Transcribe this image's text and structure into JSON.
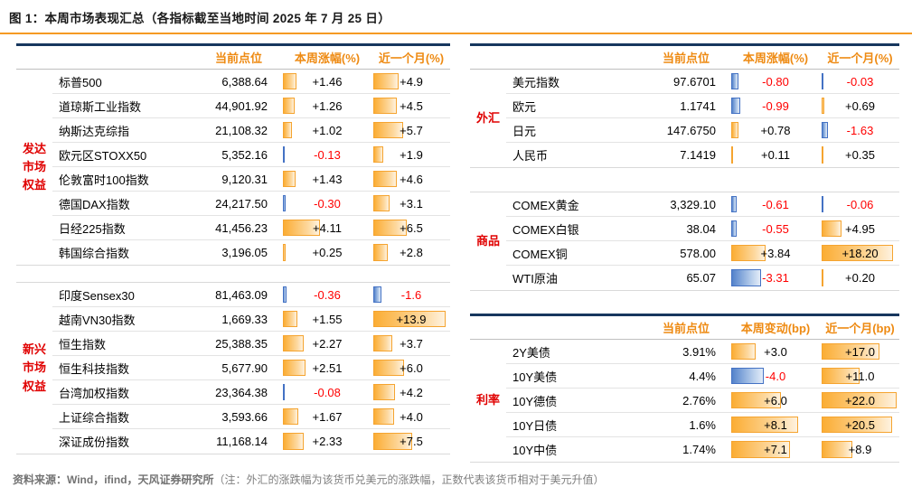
{
  "title": "图 1：本周市场表现汇总（各指标截至当地时间 2025 年 7 月 25 日）",
  "note": {
    "source": "资料来源：Wind，ifind，天风证券研究所",
    "text": "（注：外汇的涨跌幅为该货币兑美元的涨跌幅，正数代表该货币相对于美元升值）"
  },
  "colors": {
    "header_orange": "#EE8A12",
    "accent_rule_orange": "#F59A23",
    "group_label_red": "#E00000",
    "negative_red": "#FF0000",
    "positive_bar": "#FBAD34",
    "negative_bar": "#4472C4",
    "table_top_border_navy": "#17375E"
  },
  "chart_data": {
    "type": "table",
    "tables": [
      {
        "id": "left-table",
        "headers": [
          "当前点位",
          "本周涨幅(%)",
          "近一个月(%)"
        ],
        "bar_scale_hint": [
          10,
          15
        ],
        "groups": [
          {
            "label": "发达市场权益",
            "rows": [
              {
                "name": "标普500",
                "current": "6,388.64",
                "week": "+1.46",
                "month": "+4.9"
              },
              {
                "name": "道琼斯工业指数",
                "current": "44,901.92",
                "week": "+1.26",
                "month": "+4.5"
              },
              {
                "name": "纳斯达克综指",
                "current": "21,108.32",
                "week": "+1.02",
                "month": "+5.7"
              },
              {
                "name": "欧元区STOXX50",
                "current": "5,352.16",
                "week": "-0.13",
                "month": "+1.9"
              },
              {
                "name": "伦敦富时100指数",
                "current": "9,120.31",
                "week": "+1.43",
                "month": "+4.6"
              },
              {
                "name": "德国DAX指数",
                "current": "24,217.50",
                "week": "-0.30",
                "month": "+3.1"
              },
              {
                "name": "日经225指数",
                "current": "41,456.23",
                "week": "+4.11",
                "month": "+6.5"
              },
              {
                "name": "韩国综合指数",
                "current": "3,196.05",
                "week": "+0.25",
                "month": "+2.8"
              }
            ]
          },
          {
            "label": "新兴市场权益",
            "rows": [
              {
                "name": "印度Sensex30",
                "current": "81,463.09",
                "week": "-0.36",
                "month": "-1.6"
              },
              {
                "name": "越南VN30指数",
                "current": "1,669.33",
                "week": "+1.55",
                "month": "+13.9"
              },
              {
                "name": "恒生指数",
                "current": "25,388.35",
                "week": "+2.27",
                "month": "+3.7"
              },
              {
                "name": "恒生科技指数",
                "current": "5,677.90",
                "week": "+2.51",
                "month": "+6.0"
              },
              {
                "name": "台湾加权指数",
                "current": "23,364.38",
                "week": "-0.08",
                "month": "+4.2"
              },
              {
                "name": "上证综合指数",
                "current": "3,593.66",
                "week": "+1.67",
                "month": "+4.0"
              },
              {
                "name": "深证成份指数",
                "current": "11,168.14",
                "week": "+2.33",
                "month": "+7.5"
              }
            ]
          }
        ]
      },
      {
        "id": "right-top-table",
        "headers": [
          "当前点位",
          "本周涨幅(%)",
          "近一个月(%)"
        ],
        "bar_scale_hint": [
          10,
          20
        ],
        "groups": [
          {
            "label": "外汇",
            "rows": [
              {
                "name": "美元指数",
                "current": "97.6701",
                "week": "-0.80",
                "month": "-0.03"
              },
              {
                "name": "欧元",
                "current": "1.1741",
                "week": "-0.99",
                "month": "+0.69"
              },
              {
                "name": "日元",
                "current": "147.6750",
                "week": "+0.78",
                "month": "-1.63"
              },
              {
                "name": "人民币",
                "current": "7.1419",
                "week": "+0.11",
                "month": "+0.35"
              }
            ]
          },
          {
            "label": "商品",
            "rows": [
              {
                "name": "COMEX黄金",
                "current": "3,329.10",
                "week": "-0.61",
                "month": "-0.06"
              },
              {
                "name": "COMEX白银",
                "current": "38.04",
                "week": "-0.55",
                "month": "+4.95"
              },
              {
                "name": "COMEX铜",
                "current": "578.00",
                "week": "+3.84",
                "month": "+18.20"
              },
              {
                "name": "WTI原油",
                "current": "65.07",
                "week": "-3.31",
                "month": "+0.20"
              }
            ]
          }
        ]
      },
      {
        "id": "right-bottom-table",
        "headers": [
          "当前点位",
          "本周变动(bp)",
          "近一个月(bp)"
        ],
        "bar_scale_hint": [
          11,
          23
        ],
        "groups": [
          {
            "label": "利率",
            "rows": [
              {
                "name": "2Y美债",
                "current": "3.91%",
                "week": "+3.0",
                "month": "+17.0"
              },
              {
                "name": "10Y美债",
                "current": "4.4%",
                "week": "-4.0",
                "month": "+11.0"
              },
              {
                "name": "10Y德债",
                "current": "2.76%",
                "week": "+6.0",
                "month": "+22.0"
              },
              {
                "name": "10Y日债",
                "current": "1.6%",
                "week": "+8.1",
                "month": "+20.5"
              },
              {
                "name": "10Y中债",
                "current": "1.74%",
                "week": "+7.1",
                "month": "+8.9"
              }
            ]
          }
        ]
      }
    ]
  }
}
